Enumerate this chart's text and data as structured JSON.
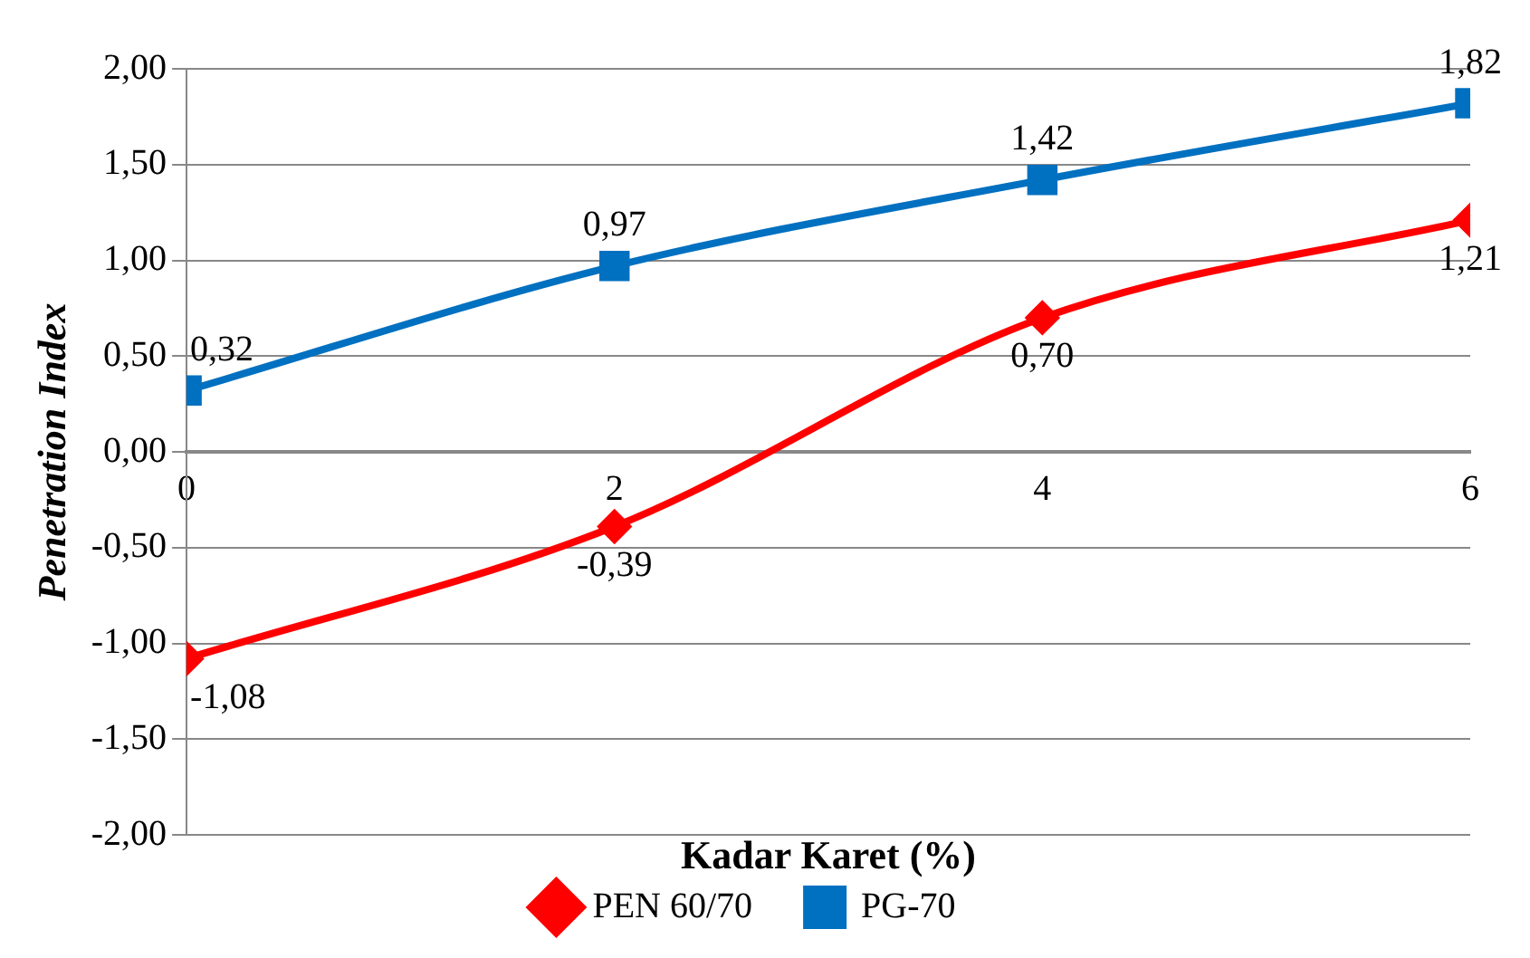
{
  "chart_data": {
    "type": "line",
    "xlabel": "Kadar Karet (%)",
    "ylabel": "Penetration Index",
    "x": [
      0,
      2,
      4,
      6
    ],
    "xlim": [
      0,
      6
    ],
    "xticks": [
      0,
      2,
      4,
      6
    ],
    "ylim": [
      -2,
      2
    ],
    "yticks": [
      {
        "value": -2,
        "label": "-2,00"
      },
      {
        "value": -1.5,
        "label": "-1,50"
      },
      {
        "value": -1,
        "label": "-1,00"
      },
      {
        "value": -0.5,
        "label": "-0,50"
      },
      {
        "value": 0,
        "label": "0,00"
      },
      {
        "value": 0.5,
        "label": "0,50"
      },
      {
        "value": 1,
        "label": "1,00"
      },
      {
        "value": 1.5,
        "label": "1,50"
      },
      {
        "value": 2,
        "label": "2,00"
      }
    ],
    "grid": "y",
    "legend": "bottom",
    "series": [
      {
        "name": "PEN 60/70",
        "color": "#ff0000",
        "marker": "diamond",
        "values": [
          -1.08,
          -0.39,
          0.7,
          1.21
        ],
        "value_labels": [
          "-1,08",
          "-0,39",
          "0,70",
          "1,21"
        ]
      },
      {
        "name": "PG-70",
        "color": "#0070c0",
        "marker": "square",
        "values": [
          0.32,
          0.97,
          1.42,
          1.82
        ],
        "value_labels": [
          "0,32",
          "0,97",
          "1,42",
          "1,82"
        ]
      }
    ]
  }
}
